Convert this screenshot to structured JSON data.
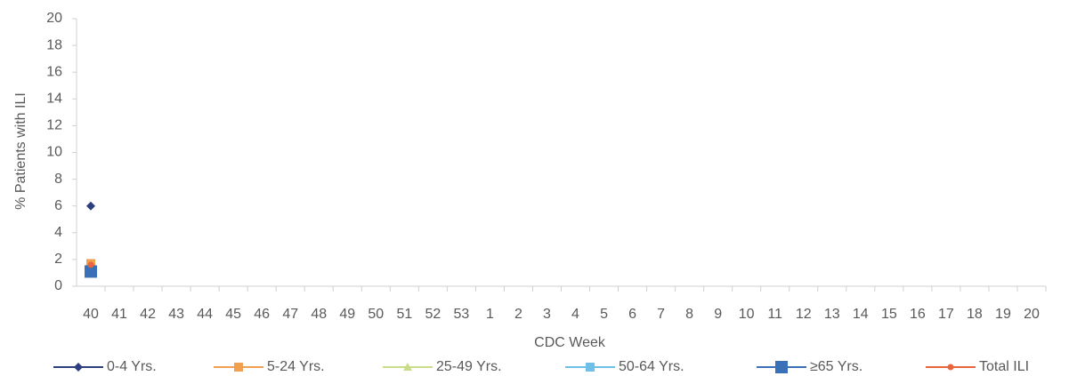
{
  "chart_data": {
    "type": "line",
    "x_label": "CDC Week",
    "y_label": "% Patients with ILI",
    "categories": [
      40,
      41,
      42,
      43,
      44,
      45,
      46,
      47,
      48,
      49,
      50,
      51,
      52,
      53,
      1,
      2,
      3,
      4,
      5,
      6,
      7,
      8,
      9,
      10,
      11,
      12,
      13,
      14,
      15,
      16,
      17,
      18,
      19,
      20
    ],
    "ylim": [
      0,
      20
    ],
    "yticks": [
      0,
      2,
      4,
      6,
      8,
      10,
      12,
      14,
      16,
      18,
      20
    ],
    "series": [
      {
        "name": "0-4 Yrs.",
        "color": "#2e3f80",
        "marker": "diamond",
        "values": [
          6.0,
          null,
          null,
          null,
          null,
          null,
          null,
          null,
          null,
          null,
          null,
          null,
          null,
          null,
          null,
          null,
          null,
          null,
          null,
          null,
          null,
          null,
          null,
          null,
          null,
          null,
          null,
          null,
          null,
          null,
          null,
          null,
          null,
          null
        ]
      },
      {
        "name": "5-24 Yrs.",
        "color": "#f0a050",
        "marker": "square",
        "values": [
          1.7,
          null,
          null,
          null,
          null,
          null,
          null,
          null,
          null,
          null,
          null,
          null,
          null,
          null,
          null,
          null,
          null,
          null,
          null,
          null,
          null,
          null,
          null,
          null,
          null,
          null,
          null,
          null,
          null,
          null,
          null,
          null,
          null,
          null
        ]
      },
      {
        "name": "25-49 Yrs.",
        "color": "#c8dc8a",
        "marker": "triangle",
        "values": [
          1.3,
          null,
          null,
          null,
          null,
          null,
          null,
          null,
          null,
          null,
          null,
          null,
          null,
          null,
          null,
          null,
          null,
          null,
          null,
          null,
          null,
          null,
          null,
          null,
          null,
          null,
          null,
          null,
          null,
          null,
          null,
          null,
          null,
          null
        ]
      },
      {
        "name": "50-64 Yrs.",
        "color": "#6fc0e8",
        "marker": "square",
        "values": [
          1.2,
          null,
          null,
          null,
          null,
          null,
          null,
          null,
          null,
          null,
          null,
          null,
          null,
          null,
          null,
          null,
          null,
          null,
          null,
          null,
          null,
          null,
          null,
          null,
          null,
          null,
          null,
          null,
          null,
          null,
          null,
          null,
          null,
          null
        ]
      },
      {
        "name": "≥65 Yrs.",
        "color": "#3a70b8",
        "marker": "bigsquare",
        "values": [
          1.1,
          null,
          null,
          null,
          null,
          null,
          null,
          null,
          null,
          null,
          null,
          null,
          null,
          null,
          null,
          null,
          null,
          null,
          null,
          null,
          null,
          null,
          null,
          null,
          null,
          null,
          null,
          null,
          null,
          null,
          null,
          null,
          null,
          null
        ]
      },
      {
        "name": "Total ILI",
        "color": "#e8643c",
        "marker": "circle",
        "values": [
          1.6,
          null,
          null,
          null,
          null,
          null,
          null,
          null,
          null,
          null,
          null,
          null,
          null,
          null,
          null,
          null,
          null,
          null,
          null,
          null,
          null,
          null,
          null,
          null,
          null,
          null,
          null,
          null,
          null,
          null,
          null,
          null,
          null,
          null
        ]
      }
    ]
  }
}
